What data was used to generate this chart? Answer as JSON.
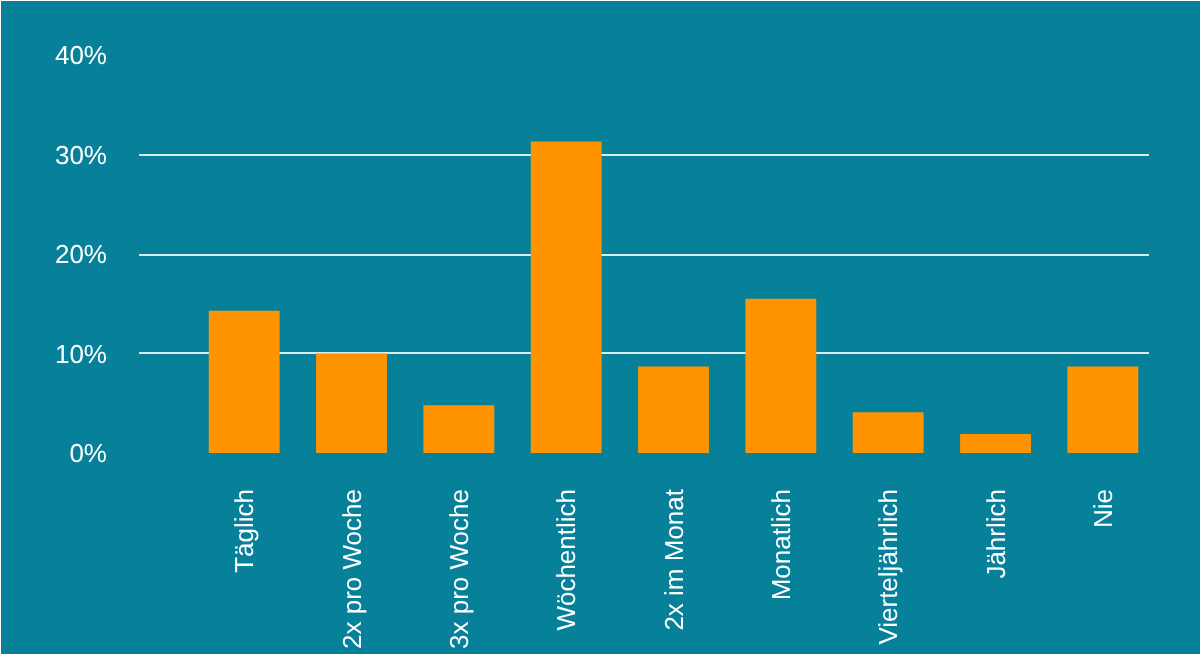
{
  "chart_data": {
    "type": "bar",
    "categories": [
      "Täglich",
      "2x pro Woche",
      "3x pro Woche",
      "Wöchentlich",
      "2x im Monat",
      "Monatlich",
      "Vierteljährlich",
      "Jährlich",
      "Nie"
    ],
    "values": [
      14.3,
      10.0,
      4.8,
      31.3,
      8.7,
      15.5,
      4.1,
      1.9,
      8.7
    ],
    "color": "#ff9400",
    "ylim": [
      0,
      40
    ],
    "yticks": [
      {
        "value": 0,
        "label": "0%"
      },
      {
        "value": 10,
        "label": "10%"
      },
      {
        "value": 20,
        "label": "20%"
      },
      {
        "value": 30,
        "label": "30%"
      },
      {
        "value": 40,
        "label": "40%"
      }
    ],
    "grid": "y"
  }
}
